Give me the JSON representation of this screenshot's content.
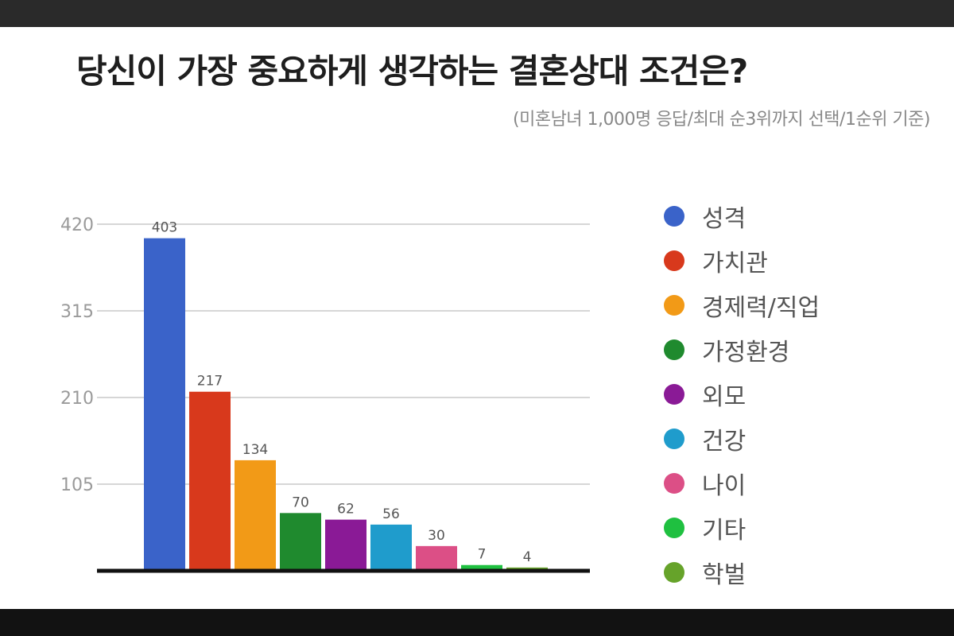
{
  "chart_data": {
    "type": "bar",
    "title": "당신이 가장 중요하게 생각하는 결혼상대 조건은?",
    "subtitle": "(미혼남녀 1,000명 응답/최대 순3위까지 선택/1순위 기준)",
    "categories": [
      "성격",
      "가치관",
      "경제력/직업",
      "가정환경",
      "외모",
      "건강",
      "나이",
      "기타",
      "학벌"
    ],
    "values": [
      403,
      217,
      134,
      70,
      62,
      56,
      30,
      7,
      4
    ],
    "value_labels": [
      "403",
      "217",
      "134",
      "70",
      "62",
      "56",
      "30",
      "7",
      "4"
    ],
    "colors": [
      "#3a63c9",
      "#d8391c",
      "#f29a17",
      "#1f8a2e",
      "#8a1a96",
      "#1f9ccc",
      "#dc4f86",
      "#1fc040",
      "#66a32a"
    ],
    "ylim": [
      0,
      420
    ],
    "yticks": [
      105,
      210,
      315,
      420
    ],
    "ytick_labels": [
      "105",
      "210",
      "315",
      "420"
    ],
    "grid": true,
    "legend_position": "right",
    "xlabel": "",
    "ylabel": ""
  }
}
